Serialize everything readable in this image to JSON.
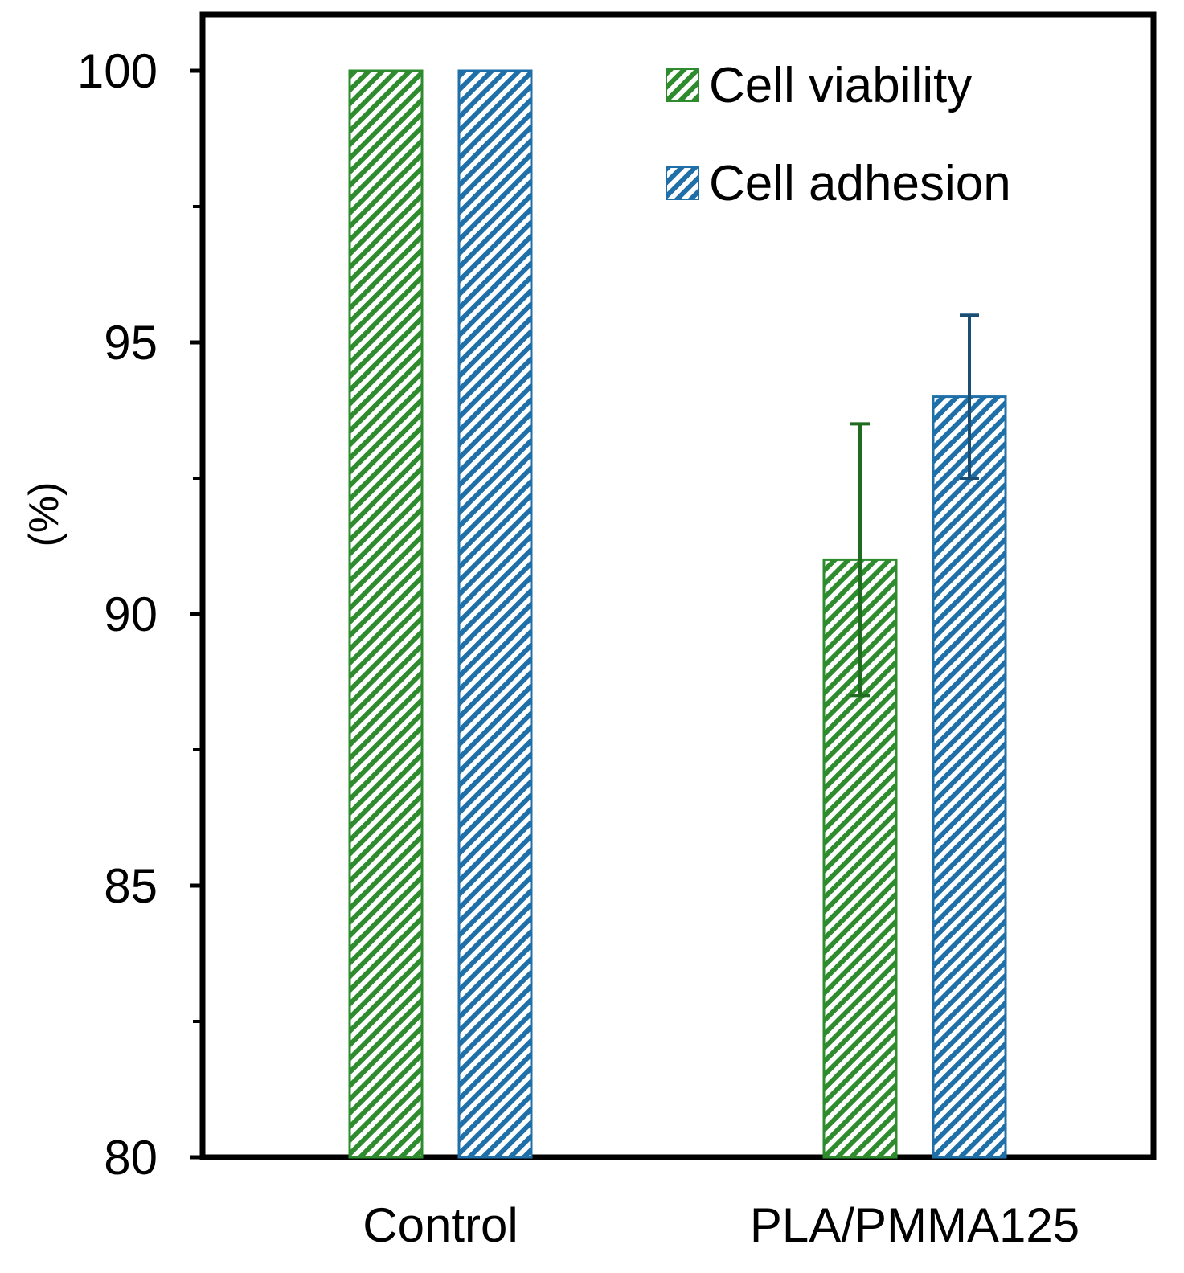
{
  "chart_data": {
    "type": "bar",
    "title": "",
    "xlabel": "",
    "ylabel": "(%)",
    "ylim": [
      80,
      100
    ],
    "y_ticks": [
      "80",
      "85",
      "90",
      "95",
      "100"
    ],
    "categories": [
      "Control",
      "PLA/PMMA125"
    ],
    "legend_position": "top-right",
    "grid": false,
    "series": [
      {
        "name": "Cell viability",
        "color": "#2e8b2e",
        "values": [
          100,
          91
        ],
        "errors": [
          0,
          2.5
        ]
      },
      {
        "name": "Cell adhesion",
        "color": "#1f6fa8",
        "values": [
          100,
          94
        ],
        "errors": [
          0,
          1.5
        ]
      }
    ]
  }
}
